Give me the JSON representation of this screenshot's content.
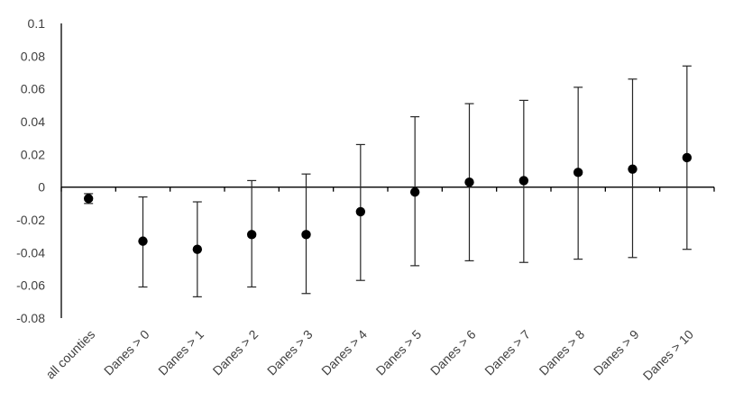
{
  "chart_data": {
    "type": "scatter",
    "title": "",
    "xlabel": "",
    "ylabel": "",
    "ylim": [
      -0.08,
      0.1
    ],
    "y_ticks": [
      "0.1",
      "0.08",
      "0.06",
      "0.04",
      "0.02",
      "0",
      "-0.02",
      "-0.04",
      "-0.06",
      "-0.08"
    ],
    "y_tick_values": [
      0.1,
      0.08,
      0.06,
      0.04,
      0.02,
      0,
      -0.02,
      -0.04,
      -0.06,
      -0.08
    ],
    "grid": false,
    "legend": "none",
    "categories": [
      "all counties",
      "Danes > 0",
      "Danes > 1",
      "Danes > 2",
      "Danes > 3",
      "Danes > 4",
      "Danes > 5",
      "Danes > 6",
      "Danes > 7",
      "Danes > 8",
      "Danes > 9",
      "Danes > 10"
    ],
    "values": [
      -0.007,
      -0.033,
      -0.038,
      -0.029,
      -0.029,
      -0.015,
      -0.003,
      0.003,
      0.004,
      0.009,
      0.011,
      0.018
    ],
    "error_low": [
      -0.01,
      -0.061,
      -0.067,
      -0.061,
      -0.065,
      -0.057,
      -0.048,
      -0.045,
      -0.046,
      -0.044,
      -0.043,
      -0.038
    ],
    "error_high": [
      -0.004,
      -0.006,
      -0.009,
      0.004,
      0.008,
      0.026,
      0.043,
      0.051,
      0.053,
      0.061,
      0.066,
      0.074
    ],
    "colors": {
      "marker": "#000000",
      "axis": "#000000",
      "text": "#404040"
    }
  }
}
